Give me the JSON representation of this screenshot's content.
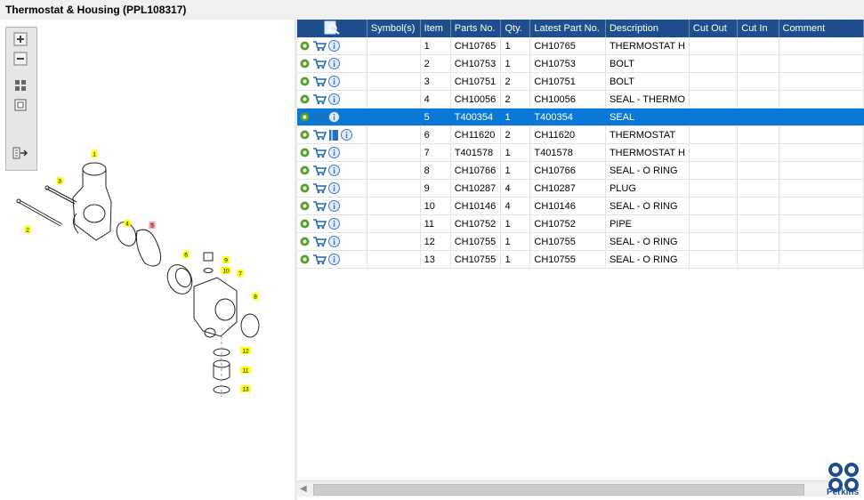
{
  "window": {
    "title": "Thermostat & Housing (PPL108317)"
  },
  "grid": {
    "columns": [
      "",
      "Symbol(s)",
      "Item",
      "Parts No.",
      "Qty.",
      "Latest Part No.",
      "Description",
      "Cut Out",
      "Cut In",
      "Comment"
    ],
    "rows": [
      {
        "item": "1",
        "parts_no": "CH10765",
        "qty": "1",
        "latest": "CH10765",
        "desc": "THERMOSTAT H",
        "book": false,
        "selected": false
      },
      {
        "item": "2",
        "parts_no": "CH10753",
        "qty": "1",
        "latest": "CH10753",
        "desc": "BOLT",
        "book": false,
        "selected": false
      },
      {
        "item": "3",
        "parts_no": "CH10751",
        "qty": "2",
        "latest": "CH10751",
        "desc": "BOLT",
        "book": false,
        "selected": false
      },
      {
        "item": "4",
        "parts_no": "CH10056",
        "qty": "2",
        "latest": "CH10056",
        "desc": "SEAL - THERMO",
        "book": false,
        "selected": false
      },
      {
        "item": "5",
        "parts_no": "T400354",
        "qty": "1",
        "latest": "T400354",
        "desc": "SEAL",
        "book": false,
        "selected": true
      },
      {
        "item": "6",
        "parts_no": "CH11620",
        "qty": "2",
        "latest": "CH11620",
        "desc": "THERMOSTAT",
        "book": true,
        "selected": false
      },
      {
        "item": "7",
        "parts_no": "T401578",
        "qty": "1",
        "latest": "T401578",
        "desc": "THERMOSTAT H",
        "book": false,
        "selected": false
      },
      {
        "item": "8",
        "parts_no": "CH10766",
        "qty": "1",
        "latest": "CH10766",
        "desc": "SEAL - O RING",
        "book": false,
        "selected": false
      },
      {
        "item": "9",
        "parts_no": "CH10287",
        "qty": "4",
        "latest": "CH10287",
        "desc": "PLUG",
        "book": false,
        "selected": false
      },
      {
        "item": "10",
        "parts_no": "CH10146",
        "qty": "4",
        "latest": "CH10146",
        "desc": "SEAL - O RING",
        "book": false,
        "selected": false
      },
      {
        "item": "11",
        "parts_no": "CH10752",
        "qty": "1",
        "latest": "CH10752",
        "desc": "PIPE",
        "book": false,
        "selected": false
      },
      {
        "item": "12",
        "parts_no": "CH10755",
        "qty": "1",
        "latest": "CH10755",
        "desc": "SEAL - O RING",
        "book": false,
        "selected": false
      },
      {
        "item": "13",
        "parts_no": "CH10755",
        "qty": "1",
        "latest": "CH10755",
        "desc": "SEAL - O RING",
        "book": false,
        "selected": false
      }
    ]
  },
  "diagram": {
    "callouts": [
      "1",
      "2",
      "3",
      "4",
      "5",
      "6",
      "7",
      "8",
      "9",
      "10",
      "11",
      "12",
      "13"
    ],
    "highlighted_callout": "5"
  },
  "toolbar": {
    "icons": [
      "zoom-in-icon",
      "zoom-out-icon",
      "fit-all-icon",
      "actual-size-icon",
      "export-icon"
    ]
  },
  "logo": {
    "text": "Perkins"
  },
  "colors": {
    "header_bg": "#1f4e8c",
    "selection": "#0a78d7",
    "callout_yellow": "#ffff00",
    "callout_highlight": "#ff9999"
  }
}
